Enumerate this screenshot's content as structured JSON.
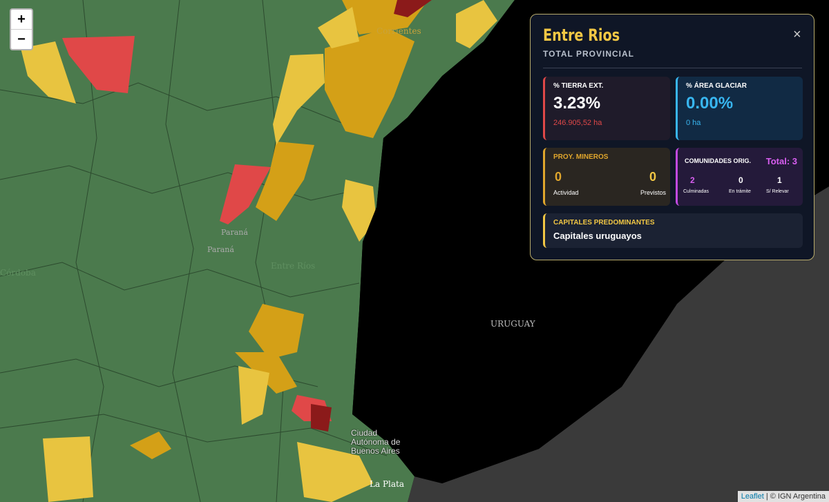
{
  "controls": {
    "zoom_in": "+",
    "zoom_out": "−"
  },
  "map_labels": {
    "country": "URUGUAY",
    "city": "Ciudad Autónoma de Buenos Aires",
    "capital": "Paraná",
    "capital2": "Paraná",
    "province1": "Corrientes",
    "province2": "Entre Ríos",
    "province3": "Córdoba",
    "city2": "La Plata"
  },
  "panel": {
    "title": "Entre Rios",
    "subtitle": "TOTAL PROVINCIAL",
    "close": "×",
    "tierra": {
      "label": "% TIERRA EXT.",
      "value": "3.23%",
      "detail": "246.905,52 ha"
    },
    "glaciar": {
      "label": "% ÁREA GLACIAR",
      "value": "0.00%",
      "detail": "0 ha"
    },
    "mineros": {
      "label": "PROY. MINEROS",
      "items": [
        {
          "value": "0",
          "label": "Actividad"
        },
        {
          "value": "0",
          "label": "Previstos"
        }
      ]
    },
    "comunidades": {
      "label": "COMUNIDADES ORIG.",
      "total": "Total: 3",
      "items": [
        {
          "value": "2",
          "label": "Culminadas"
        },
        {
          "value": "0",
          "label": "En trámite"
        },
        {
          "value": "1",
          "label": "S/ Relevar"
        }
      ]
    },
    "capitales": {
      "label": "CAPITALES PREDOMINANTES",
      "value": "Capitales uruguayos"
    }
  },
  "attribution": {
    "link": "Leaflet",
    "text": "| © IGN Argentina"
  }
}
